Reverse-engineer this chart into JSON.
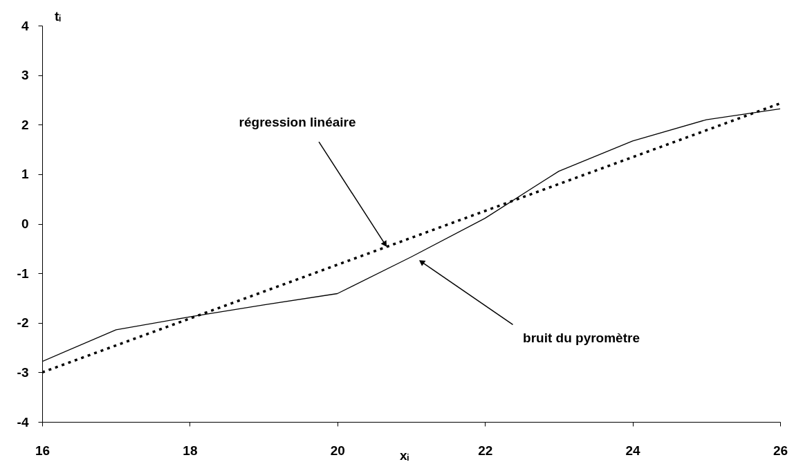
{
  "chart_data": {
    "type": "line",
    "xlabel": "xᵢ",
    "ylabel": "tᵢ",
    "x": [
      16,
      17,
      18,
      19,
      20,
      21,
      22,
      23,
      24,
      25,
      26
    ],
    "series": [
      {
        "color": "#000000",
        "line_style": "solid",
        "values": [
          -2.78,
          -2.14,
          -1.88,
          -1.64,
          -1.41,
          -0.67,
          0.11,
          1.06,
          1.67,
          2.1,
          2.32
        ]
      },
      {
        "type": "line",
        "color": "#000000",
        "line_style": "dotted",
        "x": [
          16,
          26
        ],
        "values": [
          -3.0,
          2.43
        ]
      }
    ],
    "xlim": [
      16,
      26
    ],
    "xticks": [
      16,
      18,
      20,
      22,
      24,
      26
    ],
    "ylim": [
      -4,
      4
    ],
    "yticks": [
      -4,
      -3,
      -2,
      -1,
      0,
      1,
      2,
      3,
      4
    ],
    "annotations": [
      {
        "text": "régression linéaire",
        "x": 20.64,
        "y": -0.4
      },
      {
        "text": "bruit du pyromètre",
        "x": 21.15,
        "y": -0.78
      }
    ]
  }
}
